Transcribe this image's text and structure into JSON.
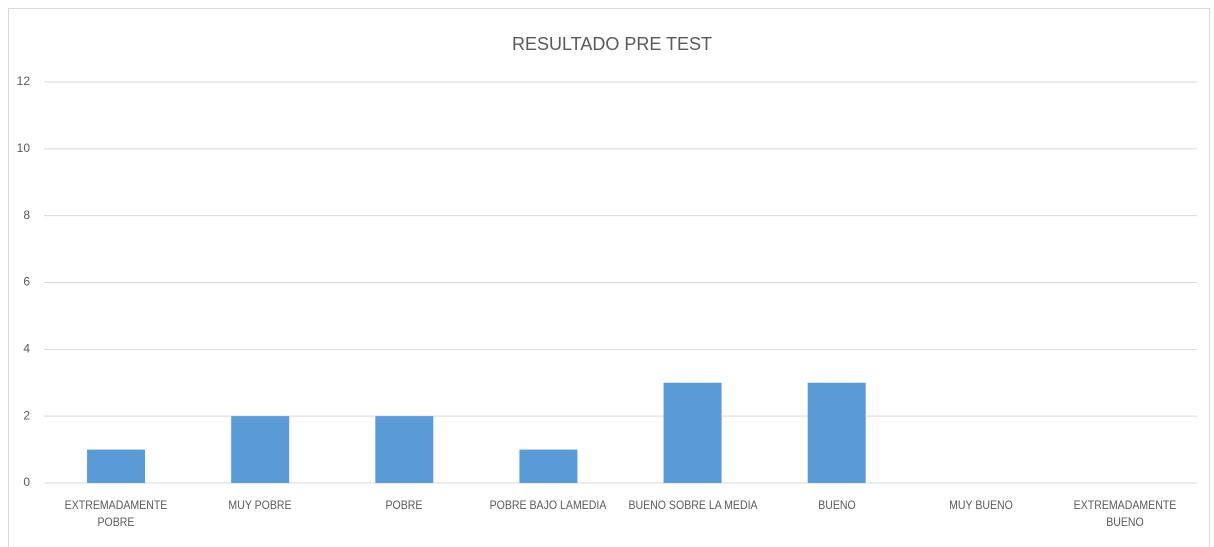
{
  "chart_data": {
    "type": "bar",
    "title": "RESULTADO PRE  TEST",
    "categories": [
      "EXTREMADAMENTE POBRE",
      "MUY POBRE",
      "POBRE",
      "POBRE BAJO LAMEDIA",
      "BUENO SOBRE LA MEDIA",
      "BUENO",
      "MUY BUENO",
      "EXTREMADAMENTE BUENO"
    ],
    "values": [
      1,
      2,
      2,
      1,
      3,
      3,
      0,
      0
    ],
    "color": "#5b9bd5",
    "ylim": [
      0,
      12
    ],
    "yticks": [
      0,
      2,
      4,
      6,
      8,
      10,
      12
    ],
    "grid": true
  }
}
